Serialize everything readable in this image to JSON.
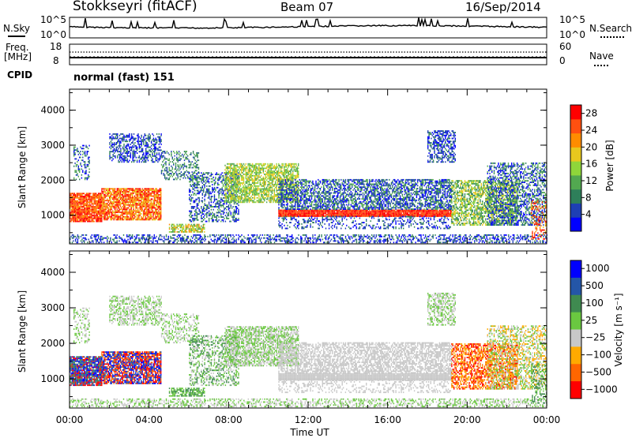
{
  "header": {
    "station": "Stokkseyri (fitACF)",
    "beam": "Beam 07",
    "date": "16/Sep/2014"
  },
  "noise_panel": {
    "left_label": "N.Sky",
    "right_label": "N.Search",
    "left_ticks": [
      "10^5",
      "10^0"
    ],
    "right_ticks": [
      "10^5",
      "10^0"
    ]
  },
  "freq_panel": {
    "left_label_line1": "Freq.",
    "left_label_line2": "[MHz]",
    "left_ticks": [
      "18",
      "8"
    ],
    "right_label": "Nave",
    "right_ticks": [
      "60",
      "0"
    ]
  },
  "cpid": {
    "label": "CPID",
    "value": "normal (fast) 151"
  },
  "colors": {
    "power_scale": [
      "#0000ff",
      "#1e3fb4",
      "#2e7f5a",
      "#52a850",
      "#8fd63a",
      "#e8c81e",
      "#ff8c00",
      "#ff5010",
      "#ff0000"
    ],
    "velocity_scale": [
      "#0000ff",
      "#2456a8",
      "#3f8a50",
      "#6ac840",
      "#c8c8c8",
      "#ffaa00",
      "#ff6600",
      "#ff0000"
    ]
  },
  "chart_data": [
    {
      "type": "heatmap",
      "name": "power",
      "ylabel": "Slant Range [km]",
      "ylim": [
        180,
        4600
      ],
      "yticks": [
        "1000",
        "2000",
        "3000",
        "4000"
      ],
      "xlim": [
        "00:00",
        "24:00"
      ],
      "colorbar": {
        "label": "Power [dB]",
        "ticks": [
          "4",
          "8",
          "12",
          "16",
          "20",
          "24",
          "28"
        ],
        "range": [
          0,
          30
        ]
      }
    },
    {
      "type": "heatmap",
      "name": "velocity",
      "ylabel": "Slant Range [km]",
      "ylim": [
        180,
        4600
      ],
      "yticks": [
        "1000",
        "2000",
        "3000",
        "4000"
      ],
      "xticks": [
        "00:00",
        "04:00",
        "08:00",
        "12:00",
        "16:00",
        "20:00",
        "00:00"
      ],
      "xlabel": "Time UT",
      "colorbar": {
        "label": "Velocity [m s⁻¹]",
        "ticks": [
          "1000",
          "500",
          "100",
          "25",
          "−25",
          "−100",
          "−500",
          "−1000"
        ]
      }
    }
  ]
}
